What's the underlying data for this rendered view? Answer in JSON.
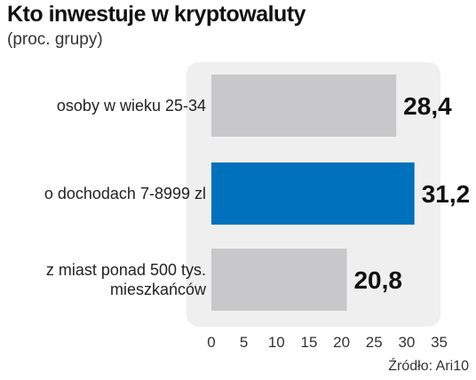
{
  "chart_data": {
    "type": "bar",
    "orientation": "horizontal",
    "title": "Kto inwestuje w kryptowaluty",
    "subtitle": "(proc. grupy)",
    "categories": [
      [
        "osoby w wieku 25-34"
      ],
      [
        "o dochodach 7-8999 zl"
      ],
      [
        "z miast ponad 500 tys.",
        "mieszkańców"
      ]
    ],
    "values": [
      28.4,
      31.2,
      20.8
    ],
    "value_labels": [
      "28,4",
      "31,2",
      "20,8"
    ],
    "highlight_index": 1,
    "xlim": [
      0,
      35
    ],
    "xticks": [
      0,
      5,
      10,
      15,
      20,
      25,
      30,
      35
    ],
    "grid": false,
    "colors": {
      "bar": "#c8c8ca",
      "highlight": "#0071bc",
      "panel": "#efefef"
    },
    "source": "Źródło: Ari10"
  }
}
